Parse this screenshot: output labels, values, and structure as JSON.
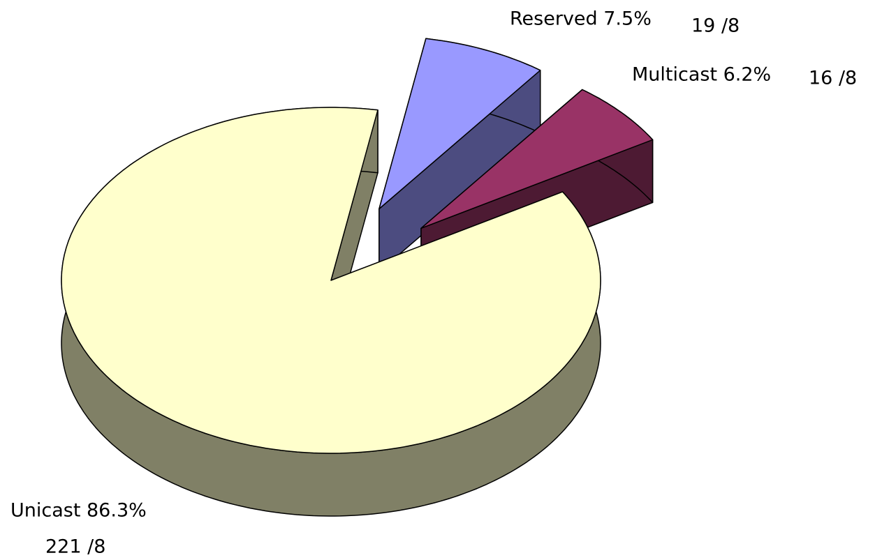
{
  "chart_data": {
    "type": "pie3d",
    "labels": [
      "Reserved 7.5%",
      "Multicast 6.2%",
      "Unicast 86.3%"
    ],
    "values": [
      19,
      16,
      221
    ],
    "value_labels": [
      "19 /8",
      "16 /8",
      "221 /8"
    ],
    "colors": [
      "#9999ff",
      "#993366",
      "#ffffcc"
    ],
    "side_colors": [
      "#4c4c80",
      "#4d1a33",
      "#808066"
    ],
    "exploded": [
      true,
      true,
      false
    ]
  }
}
